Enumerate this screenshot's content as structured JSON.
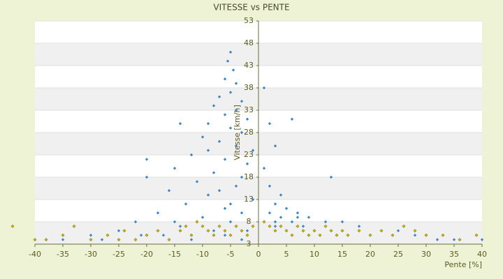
{
  "chart_data": {
    "type": "scatter",
    "title": "VITESSE vs PENTE",
    "x_label": "Pente [%]",
    "y_label": "Vitesse [km/h]",
    "xlim": [
      -40,
      40
    ],
    "xticks": [
      -40,
      -35,
      -30,
      -25,
      -20,
      -15,
      -10,
      -5,
      0,
      5,
      10,
      15,
      20,
      25,
      30,
      35,
      40
    ],
    "ylim": [
      3,
      53
    ],
    "yticks": [
      3,
      8,
      13,
      18,
      23,
      28,
      33,
      38,
      43,
      48,
      53
    ],
    "grid": "alternating-bands",
    "series": [
      {
        "color": "#3d85c6",
        "x": [
          -5,
          -5.5,
          -4.5,
          -6,
          -4,
          -5,
          -7,
          -3,
          -8,
          -4,
          -6,
          -2,
          -9,
          -5,
          -3,
          -10,
          -7,
          -4,
          -1,
          -12,
          -6,
          -2,
          -15,
          -8,
          -20,
          -11,
          -4,
          -16,
          -9,
          -1,
          -13,
          -6,
          -18,
          -3,
          -10,
          -22,
          -5,
          -14,
          -25,
          -8,
          -2,
          -30,
          -17,
          -6,
          -38,
          -12,
          -3,
          -21,
          1,
          2,
          3,
          1,
          2,
          4,
          6,
          3,
          5,
          2,
          7,
          9,
          4,
          12,
          6,
          15,
          3,
          8,
          18,
          10,
          13,
          22,
          5,
          25,
          16,
          20,
          28,
          11,
          35,
          32,
          40,
          -35,
          -28,
          -15,
          -7,
          -3,
          -20,
          -14,
          -5,
          -9,
          3,
          7,
          13
        ],
        "values": [
          46,
          44,
          42,
          40,
          39,
          37,
          36,
          35,
          34,
          33,
          32,
          31,
          30,
          29,
          28,
          27,
          26,
          25,
          24,
          23,
          22,
          21,
          20,
          19,
          18,
          17,
          16,
          15,
          14,
          13,
          12,
          11,
          10,
          10,
          9,
          8,
          8,
          7,
          6,
          6,
          6,
          5,
          5,
          5,
          4,
          4,
          4,
          5,
          38,
          30,
          25,
          20,
          16,
          14,
          31,
          12,
          11,
          10,
          10,
          9,
          9,
          8,
          8,
          8,
          7,
          7,
          7,
          6,
          6,
          6,
          6,
          6,
          5,
          5,
          5,
          5,
          4,
          4,
          4,
          4,
          4,
          8,
          15,
          18,
          22,
          30,
          12,
          24,
          8,
          9,
          18
        ]
      },
      {
        "color": "#c8b400",
        "x": [
          -44,
          -40,
          -35,
          -33,
          -30,
          -27,
          -24,
          -22,
          -20,
          -18,
          -16,
          -14,
          -12,
          -10,
          -9,
          -8,
          -7,
          -6,
          -5,
          -4,
          -3,
          -2,
          -1,
          1,
          2,
          3,
          4,
          5,
          6,
          7,
          8,
          9,
          10,
          11,
          12,
          13,
          14,
          15,
          16,
          18,
          20,
          22,
          24,
          26,
          28,
          30,
          33,
          36,
          39,
          -11,
          -13,
          -38,
          -25
        ],
        "values": [
          7,
          4,
          5,
          7,
          4,
          5,
          6,
          4,
          5,
          6,
          4,
          6,
          5,
          7,
          6,
          5,
          7,
          6,
          5,
          7,
          6,
          5,
          7,
          8,
          7,
          6,
          7,
          6,
          5,
          7,
          6,
          5,
          6,
          5,
          7,
          6,
          5,
          6,
          5,
          6,
          5,
          6,
          5,
          7,
          6,
          5,
          5,
          4,
          5,
          8,
          7,
          4,
          4
        ]
      }
    ]
  }
}
